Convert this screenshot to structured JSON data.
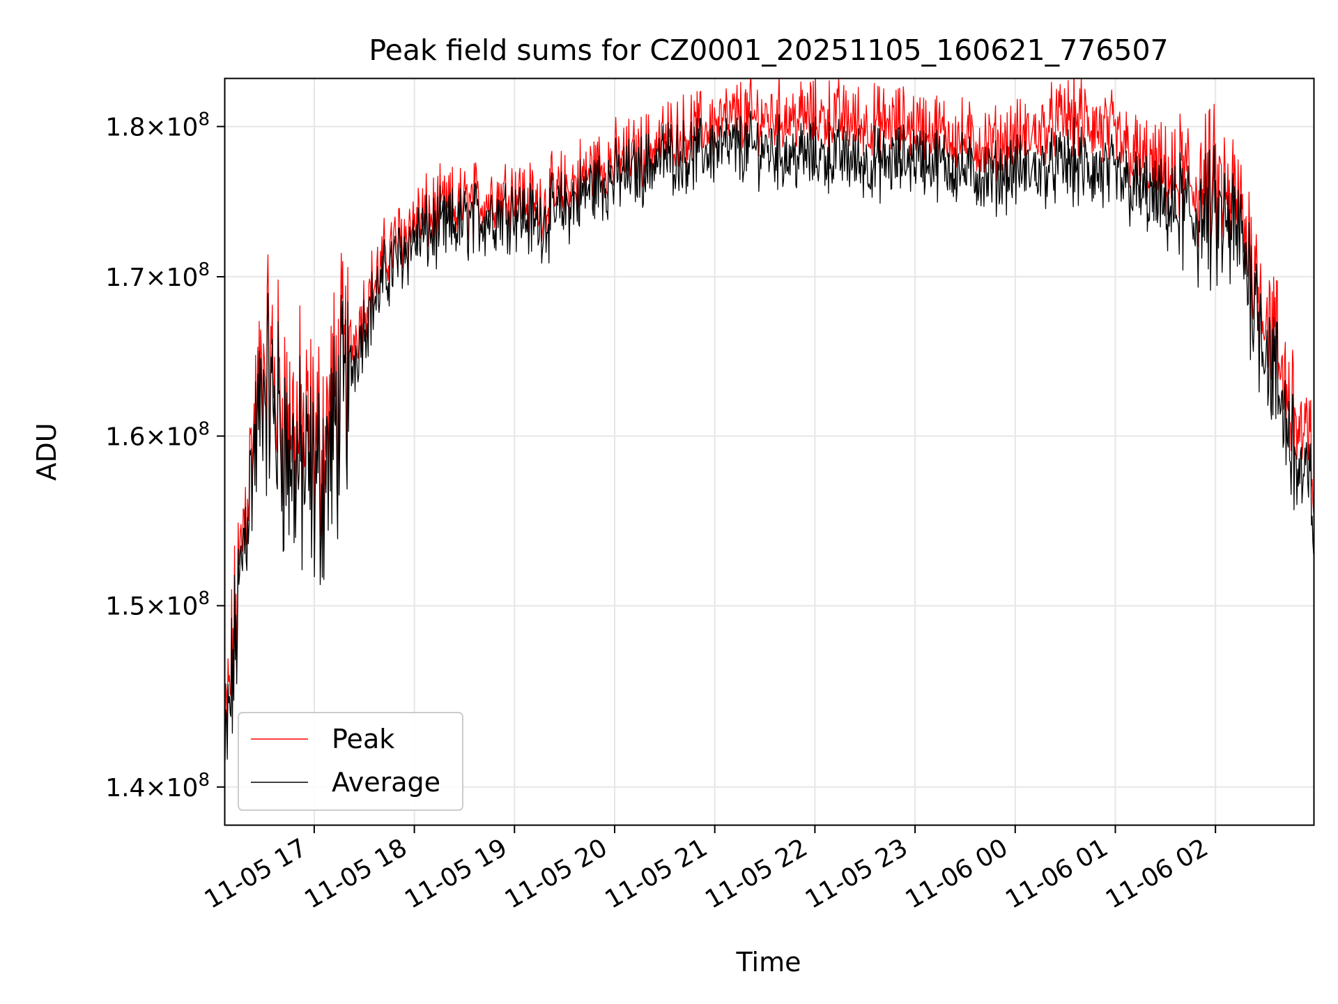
{
  "chart_data": {
    "type": "line",
    "title": "Peak field sums for CZ0001_20251105_160621_776507",
    "xlabel": "Time",
    "ylabel": "ADU",
    "yscale": "log",
    "ylim": [
      138000000,
      183300000
    ],
    "xlim_hours": [
      16.11,
      26.98
    ],
    "grid": true,
    "legend_position": "lower-left",
    "x_ticks": [
      {
        "label": "11-05 17",
        "hour": 17
      },
      {
        "label": "11-05 18",
        "hour": 18
      },
      {
        "label": "11-05 19",
        "hour": 19
      },
      {
        "label": "11-05 20",
        "hour": 20
      },
      {
        "label": "11-05 21",
        "hour": 21
      },
      {
        "label": "11-05 22",
        "hour": 22
      },
      {
        "label": "11-05 23",
        "hour": 23
      },
      {
        "label": "11-06 00",
        "hour": 24
      },
      {
        "label": "11-06 01",
        "hour": 25
      },
      {
        "label": "11-06 02",
        "hour": 26
      }
    ],
    "y_ticks": [
      {
        "mantissa": "1.4",
        "exponent": "8",
        "value": 140000000
      },
      {
        "mantissa": "1.5",
        "exponent": "8",
        "value": 150000000
      },
      {
        "mantissa": "1.6",
        "exponent": "8",
        "value": 160000000
      },
      {
        "mantissa": "1.7",
        "exponent": "8",
        "value": 170000000
      },
      {
        "mantissa": "1.8",
        "exponent": "8",
        "value": 180000000
      }
    ],
    "series": [
      {
        "name": "Peak",
        "color": "#ff0000",
        "x_hours": [
          16.11,
          16.2,
          16.3,
          16.4,
          16.5,
          16.6,
          16.75,
          16.9,
          17.0,
          17.1,
          17.3,
          17.5,
          17.75,
          18.0,
          18.25,
          18.5,
          18.75,
          19.0,
          19.2,
          19.4,
          19.6,
          19.8,
          20.0,
          20.25,
          20.5,
          20.75,
          21.0,
          21.25,
          21.5,
          21.75,
          22.0,
          22.25,
          22.5,
          22.75,
          23.0,
          23.25,
          23.5,
          23.75,
          24.0,
          24.25,
          24.5,
          24.75,
          25.0,
          25.25,
          25.5,
          25.75,
          26.0,
          26.25,
          26.4,
          26.55,
          26.7,
          26.85,
          26.98
        ],
        "values": [
          142000000,
          148000000,
          155000000,
          160000000,
          165000000,
          163000000,
          160500000,
          159500000,
          159000000,
          159500000,
          164000000,
          168000000,
          171500000,
          173500000,
          174000000,
          174500000,
          175000000,
          175500000,
          174500000,
          175000000,
          176000000,
          177000000,
          177500000,
          178000000,
          179000000,
          179500000,
          180000000,
          180500000,
          180500000,
          180500000,
          180500000,
          180500000,
          180000000,
          180000000,
          180000000,
          179500000,
          179000000,
          178500000,
          179000000,
          179500000,
          180500000,
          180000000,
          179000000,
          177500000,
          176500000,
          176000000,
          175500000,
          174000000,
          170000000,
          166500000,
          163000000,
          160000000,
          158000000
        ]
      },
      {
        "name": "Average",
        "color": "#000000",
        "x_hours": [
          16.11,
          16.2,
          16.3,
          16.4,
          16.5,
          16.6,
          16.75,
          16.9,
          17.0,
          17.1,
          17.3,
          17.5,
          17.75,
          18.0,
          18.25,
          18.5,
          18.75,
          19.0,
          19.2,
          19.4,
          19.6,
          19.8,
          20.0,
          20.25,
          20.5,
          20.75,
          21.0,
          21.25,
          21.5,
          21.75,
          22.0,
          22.25,
          22.5,
          22.75,
          23.0,
          23.25,
          23.5,
          23.75,
          24.0,
          24.25,
          24.5,
          24.75,
          25.0,
          25.25,
          25.5,
          25.75,
          26.0,
          26.25,
          26.4,
          26.55,
          26.7,
          26.85,
          26.98
        ],
        "values": [
          141000000,
          147000000,
          154000000,
          159000000,
          163500000,
          161500000,
          158500000,
          157500000,
          157000000,
          157500000,
          162500000,
          167000000,
          170500000,
          172500000,
          173000000,
          173500000,
          174000000,
          174500000,
          173500000,
          174000000,
          175000000,
          176000000,
          176500000,
          177000000,
          178000000,
          178000000,
          178500000,
          178500000,
          178500000,
          178000000,
          178000000,
          178000000,
          177500000,
          177500000,
          178000000,
          177500000,
          177000000,
          176500000,
          177000000,
          177000000,
          177500000,
          177000000,
          176500000,
          175500000,
          174500000,
          174000000,
          173500000,
          172500000,
          168500000,
          164500000,
          161000000,
          157500000,
          156000000
        ]
      }
    ]
  }
}
